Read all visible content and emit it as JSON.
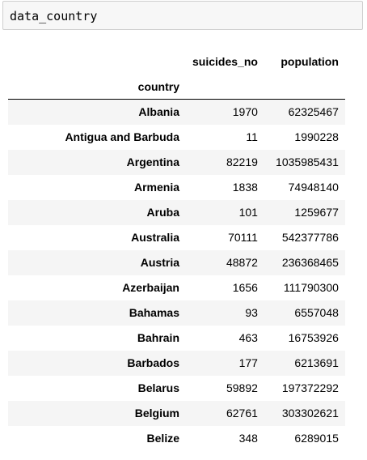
{
  "cell": {
    "code": "data_country"
  },
  "table": {
    "columns": [
      "suicides_no",
      "population"
    ],
    "index_name": "country",
    "rows": [
      {
        "country": "Albania",
        "suicides_no": "1970",
        "population": "62325467"
      },
      {
        "country": "Antigua and Barbuda",
        "suicides_no": "11",
        "population": "1990228"
      },
      {
        "country": "Argentina",
        "suicides_no": "82219",
        "population": "1035985431"
      },
      {
        "country": "Armenia",
        "suicides_no": "1838",
        "population": "74948140"
      },
      {
        "country": "Aruba",
        "suicides_no": "101",
        "population": "1259677"
      },
      {
        "country": "Australia",
        "suicides_no": "70111",
        "population": "542377786"
      },
      {
        "country": "Austria",
        "suicides_no": "48872",
        "population": "236368465"
      },
      {
        "country": "Azerbaijan",
        "suicides_no": "1656",
        "population": "111790300"
      },
      {
        "country": "Bahamas",
        "suicides_no": "93",
        "population": "6557048"
      },
      {
        "country": "Bahrain",
        "suicides_no": "463",
        "population": "16753926"
      },
      {
        "country": "Barbados",
        "suicides_no": "177",
        "population": "6213691"
      },
      {
        "country": "Belarus",
        "suicides_no": "59892",
        "population": "197372292"
      },
      {
        "country": "Belgium",
        "suicides_no": "62761",
        "population": "303302621"
      },
      {
        "country": "Belize",
        "suicides_no": "348",
        "population": "6289015"
      }
    ]
  }
}
